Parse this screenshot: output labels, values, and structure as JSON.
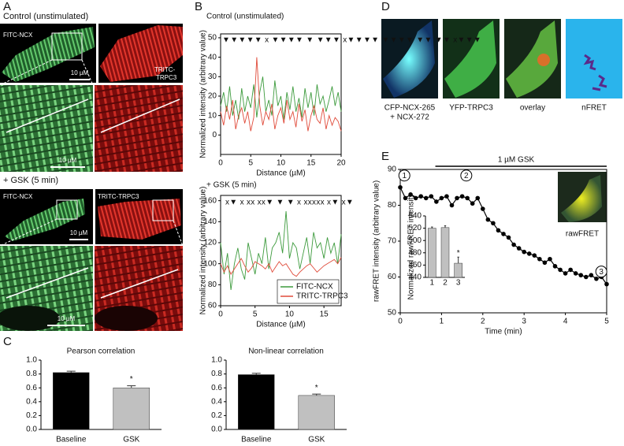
{
  "panel_labels": [
    "A",
    "B",
    "C",
    "D",
    "E"
  ],
  "panel_a": {
    "control_title": "Control (unstimulated)",
    "control_green_label": "FITC-NCX",
    "control_red_label": [
      "TRITC-",
      "TRPC3"
    ],
    "control_scale": "10 µM",
    "control_zoom_scale": "10 µM",
    "gsk_title": "+ GSK (5 min)",
    "gsk_green_label": "FITC-NCX",
    "gsk_red_label": "TRITC-TRPC3",
    "gsk_scale": "10 µM",
    "gsk_zoom_scale": "10 µM"
  },
  "panel_d": {
    "labels": [
      [
        "CFP-NCX-265",
        "+ NCX-272"
      ],
      [
        "YFP-TRPC3"
      ],
      [
        "overlay"
      ],
      [
        "nFRET"
      ]
    ]
  },
  "panel_e": {
    "image_label": "rawFRET"
  },
  "chart_data": [
    {
      "type": "line",
      "title": "Control (unstimulated)",
      "xlabel": "Distance (µM)",
      "ylabel": "Normalized intensity (arbitrary value)",
      "annotation": "▼▼▼▼▼ x ▼▼▼▼ ▼ ▼▼▼ x▼▼▼▼ ▼▼▼▼ ▼▼ ▼▼ x▼▼▼",
      "x": [
        0,
        0.5,
        1,
        1.5,
        2,
        2.5,
        3,
        3.5,
        4,
        4.5,
        5,
        5.5,
        6,
        6.5,
        7,
        7.5,
        8,
        8.5,
        9,
        9.5,
        10,
        10.5,
        11,
        11.5,
        12,
        12.5,
        13,
        13.5,
        14,
        14.5,
        15,
        15.5,
        16,
        16.5,
        17,
        17.5,
        18,
        18.5,
        19,
        19.5,
        20
      ],
      "series": [
        {
          "color": "#3c9a3c",
          "values": [
            15,
            22,
            12,
            25,
            10,
            18,
            8,
            24,
            12,
            20,
            14,
            26,
            9,
            22,
            30,
            12,
            18,
            10,
            28,
            15,
            20,
            8,
            22,
            13,
            25,
            12,
            19,
            9,
            24,
            14,
            22,
            10,
            26,
            16,
            20,
            12,
            18,
            25,
            15,
            22,
            12
          ]
        },
        {
          "color": "#e04b3a",
          "values": [
            12,
            5,
            15,
            8,
            18,
            3,
            10,
            14,
            6,
            12,
            2,
            9,
            40,
            15,
            5,
            12,
            8,
            16,
            3,
            10,
            14,
            6,
            18,
            8,
            12,
            4,
            16,
            7,
            13,
            2,
            10,
            15,
            8,
            6,
            14,
            3,
            10,
            5,
            9,
            7,
            2
          ]
        }
      ],
      "xlim": [
        0,
        20
      ],
      "xticks": [
        0,
        5,
        10,
        15,
        20
      ],
      "ylim": [
        -10,
        52
      ],
      "yticks": [
        0,
        10,
        20,
        30,
        40,
        50
      ],
      "legend": false
    },
    {
      "type": "line",
      "title": "+ GSK (5 min)",
      "xlabel": "Distance (µM)",
      "ylabel": "Normalized intensity (arbitrary value)",
      "annotation": "x▼ x xx xx▼ ▼ ▼ x xxxxx x▼ x▼",
      "x": [
        0,
        0.5,
        1,
        1.5,
        2,
        2.5,
        3,
        3.5,
        4,
        4.5,
        5,
        5.5,
        6,
        6.5,
        7,
        7.5,
        8,
        8.5,
        9,
        9.5,
        10,
        10.5,
        11,
        11.5,
        12,
        12.5,
        13,
        13.5,
        14,
        14.5,
        15,
        15.5,
        16,
        16.5,
        17,
        17.5
      ],
      "series": [
        {
          "name": "FITC-NCX",
          "color": "#3c9a3c",
          "values": [
            120,
            90,
            110,
            75,
            100,
            115,
            95,
            85,
            120,
            105,
            90,
            110,
            100,
            125,
            95,
            115,
            120,
            130,
            110,
            150,
            105,
            120,
            115,
            95,
            110,
            125,
            100,
            130,
            115,
            120,
            105,
            125,
            110,
            120,
            100,
            128
          ]
        },
        {
          "name": "TRITC-TRPC3",
          "color": "#e04b3a",
          "values": [
            100,
            92,
            98,
            90,
            95,
            100,
            105,
            98,
            92,
            96,
            102,
            100,
            98,
            95,
            100,
            92,
            97,
            102,
            98,
            100,
            95,
            90,
            88,
            92,
            95,
            98,
            100,
            96,
            92,
            95,
            98,
            100,
            102,
            104,
            100,
            106
          ]
        }
      ],
      "xlim": [
        0,
        17.5
      ],
      "xticks": [
        0,
        5,
        10,
        15
      ],
      "ylim": [
        60,
        165
      ],
      "yticks": [
        60,
        80,
        100,
        120,
        140,
        160
      ],
      "legend": "lower right"
    },
    {
      "type": "bar",
      "title": "Pearson correlation",
      "categories": [
        "Baseline",
        "GSK"
      ],
      "values": [
        0.82,
        0.6
      ],
      "errors": [
        0.02,
        0.03
      ],
      "colors": [
        "#000000",
        "#c0c0c0"
      ],
      "ylim": [
        0,
        1
      ],
      "yticks": [
        {
          "value": 0,
          "label": "0.0"
        },
        0.2,
        0.4,
        0.6,
        0.8,
        {
          "value": 1,
          "label": "1.0"
        }
      ],
      "annotation": "*"
    },
    {
      "type": "bar",
      "title": "Non-linear correlation",
      "categories": [
        "Baseline",
        "GSK"
      ],
      "values": [
        0.79,
        0.49
      ],
      "errors": [
        0.02,
        0.02
      ],
      "colors": [
        "#000000",
        "#c0c0c0"
      ],
      "ylim": [
        0,
        1
      ],
      "yticks": [
        {
          "value": 0,
          "label": "0.0"
        },
        0.2,
        0.4,
        0.6,
        0.8,
        {
          "value": 1,
          "label": "1.0"
        }
      ],
      "annotation": "*"
    },
    {
      "type": "line",
      "xlabel": "Time (min)",
      "ylabel": "rawFRET intensity (arbitrary value)",
      "annotation": "1 µM GSK",
      "time_markers": [
        "1",
        "2",
        "3"
      ],
      "markers": true,
      "x": [
        0,
        0.125,
        0.25,
        0.375,
        0.5,
        0.625,
        0.75,
        0.875,
        1,
        1.125,
        1.25,
        1.375,
        1.5,
        1.625,
        1.75,
        1.875,
        2,
        2.125,
        2.25,
        2.375,
        2.5,
        2.625,
        2.75,
        2.875,
        3,
        3.125,
        3.25,
        3.375,
        3.5,
        3.625,
        3.75,
        3.875,
        4,
        4.125,
        4.25,
        4.375,
        4.5,
        4.625,
        4.75,
        4.875,
        5
      ],
      "series": [
        {
          "color": "#000000",
          "values": [
            85,
            82,
            83,
            82,
            82.5,
            82,
            82.5,
            81,
            82,
            82.5,
            80,
            82,
            82.5,
            82,
            80.5,
            82,
            79,
            76,
            75,
            73,
            72,
            71,
            69,
            68,
            67,
            66.5,
            66,
            65,
            64,
            65,
            63,
            62,
            61,
            62,
            61,
            60.5,
            60,
            60.5,
            59.5,
            60,
            58
          ]
        }
      ],
      "xlim": [
        0,
        5
      ],
      "xticks": [
        0,
        1,
        2,
        3,
        4,
        5
      ],
      "ylim": [
        50,
        90
      ],
      "yticks": [
        50,
        60,
        70,
        80,
        90
      ],
      "legend": false
    },
    {
      "type": "bar",
      "ylabel": "Normalized rawFRET intensity",
      "categories": [
        "1",
        "2",
        "3"
      ],
      "values": [
        520,
        521,
        463
      ],
      "errors": [
        2,
        3,
        10
      ],
      "colors": [
        "#c0c0c0",
        "#c0c0c0",
        "#c0c0c0"
      ],
      "ylim": [
        440,
        540
      ],
      "yticks": [
        440,
        460,
        480,
        500,
        520,
        540
      ],
      "annotation": "*"
    }
  ]
}
